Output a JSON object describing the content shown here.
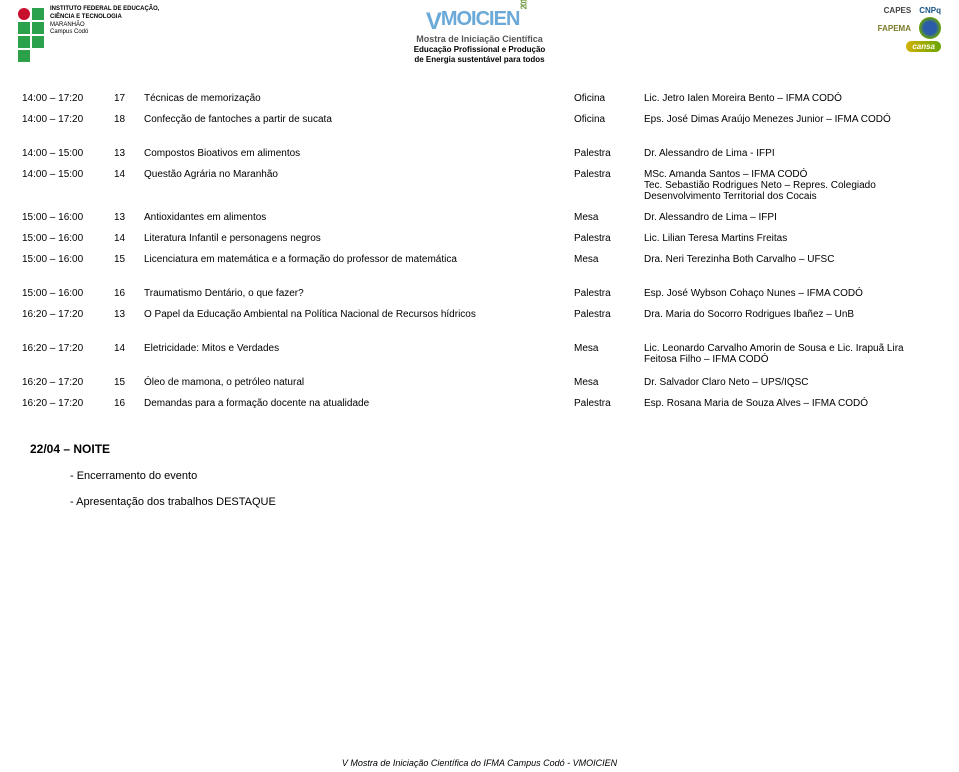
{
  "header": {
    "institute_line1": "INSTITUTO FEDERAL DE EDUCAÇÃO,",
    "institute_line2": "CIÊNCIA E TECNOLOGIA",
    "institute_line3": "MARANHÃO",
    "institute_line4": "Campus Codó",
    "event_title_prefix": "V",
    "event_title": "MOICIEN",
    "event_year": "2012",
    "event_sub1": "Mostra de Iniciação Científica",
    "event_sub2a": "Educação Profissional e Produção",
    "event_sub2b": "de Energia sustentável para todos",
    "cnpq": "CNPq",
    "capes": "CAPES",
    "fapema": "FAPEMA",
    "cansa": "cansa"
  },
  "rows": [
    {
      "time": "14:00 – 17:20",
      "num": "17",
      "title": "Técnicas de memorização",
      "type": "Oficina",
      "pres": "Lic. Jetro Ialen Moreira Bento – IFMA CODÓ"
    },
    {
      "time": "14:00 – 17:20",
      "num": "18",
      "title": "Confecção de fantoches a partir de sucata",
      "type": "Oficina",
      "pres": "Eps. José Dimas Araújo Menezes Junior – IFMA CODÓ"
    },
    {
      "time": "14:00 – 15:00",
      "num": "13",
      "title": "Compostos Bioativos em alimentos",
      "type": "Palestra",
      "pres": "Dr. Alessandro de Lima - IFPI"
    },
    {
      "time": "14:00 – 15:00",
      "num": "14",
      "title": "Questão Agrária no Maranhão",
      "type": "Palestra",
      "pres": "MSc. Amanda Santos – IFMA CODÓ\nTec. Sebastião Rodrigues Neto – Repres. Colegiado Desenvolvimento Territorial dos Cocais"
    },
    {
      "time": "15:00 – 16:00",
      "num": "13",
      "title": "Antioxidantes em alimentos",
      "type": "Mesa",
      "pres": "Dr. Alessandro de Lima – IFPI"
    },
    {
      "time": "15:00 – 16:00",
      "num": "14",
      "title": "Literatura Infantil e personagens negros",
      "type": "Palestra",
      "pres": "Lic. Lilian Teresa Martins Freitas"
    },
    {
      "time": "15:00 – 16:00",
      "num": "15",
      "title": "Licenciatura em matemática e a formação do professor de matemática",
      "type": "Mesa",
      "pres": "Dra. Neri Terezinha Both Carvalho – UFSC"
    },
    {
      "time": "15:00 – 16:00",
      "num": "16",
      "title": "Traumatismo Dentário, o que fazer?",
      "type": "Palestra",
      "pres": "Esp. José Wybson Cohaço Nunes – IFMA CODÓ"
    },
    {
      "time": "16:20 – 17:20",
      "num": "13",
      "title": "O Papel da Educação Ambiental na Política Nacional de Recursos hídricos",
      "type": "Palestra",
      "pres": "Dra. Maria do Socorro Rodrigues Ibañez – UnB"
    },
    {
      "time": "16:20 – 17:20",
      "num": "14",
      "title": "Eletricidade: Mitos e Verdades",
      "type": "Mesa",
      "pres": "Lic. Leonardo Carvalho Amorin de Sousa e Lic. Irapuã Lira Feitosa Filho – IFMA CODÓ"
    },
    {
      "time": "16:20 – 17:20",
      "num": "15",
      "title": "Óleo de mamona, o petróleo natural",
      "type": "Mesa",
      "pres": "Dr. Salvador Claro Neto – UPS/IQSC"
    },
    {
      "time": "16:20 – 17:20",
      "num": "16",
      "title": "Demandas para a formação docente na atualidade",
      "type": "Palestra",
      "pres": "Esp. Rosana Maria de Souza Alves – IFMA CODÓ"
    }
  ],
  "section": {
    "title": "22/04 – NOITE",
    "bullet1": "- Encerramento do evento",
    "bullet2": "- Apresentação dos trabalhos DESTAQUE"
  },
  "footer": "V Mostra de Iniciação Científica do IFMA Campus Codó - VMOICIEN",
  "tall_rows": [
    1,
    3,
    6,
    8,
    9
  ]
}
